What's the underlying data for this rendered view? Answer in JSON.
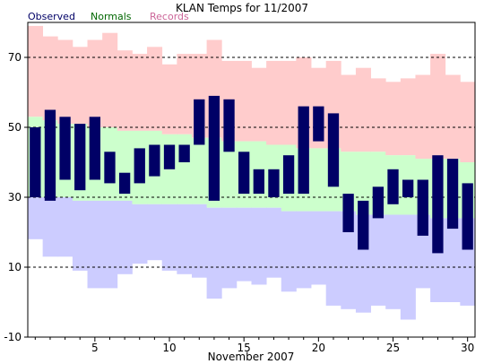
{
  "chart_data": {
    "type": "bar",
    "title": "KLAN Temps for 11/2007",
    "xlabel": "November 2007",
    "ylabel": "",
    "xlim": [
      0.5,
      30.5
    ],
    "ylim": [
      -10,
      80
    ],
    "x_ticks": [
      5,
      10,
      15,
      20,
      25,
      30
    ],
    "y_ticks": [
      -10,
      10,
      30,
      50,
      70
    ],
    "grid_dashed_at": [
      10,
      30,
      50,
      70
    ],
    "legend": {
      "placement": "top-left",
      "entries": [
        "Observed",
        "Normals",
        "Records"
      ]
    },
    "colors": {
      "observed": "#000066",
      "normals": "#ccffcc",
      "records_high": "#ffcccc",
      "records_low": "#ccccff",
      "legend_observed": "#000066",
      "legend_normals": "#006600",
      "legend_records": "#cc6699"
    },
    "days": [
      1,
      2,
      3,
      4,
      5,
      6,
      7,
      8,
      9,
      10,
      11,
      12,
      13,
      14,
      15,
      16,
      17,
      18,
      19,
      20,
      21,
      22,
      23,
      24,
      25,
      26,
      27,
      28,
      29,
      30
    ],
    "observed_high": [
      50,
      55,
      53,
      51,
      53,
      43,
      37,
      44,
      45,
      45,
      45,
      58,
      59,
      58,
      43,
      38,
      38,
      42,
      56,
      56,
      54,
      31,
      29,
      33,
      38,
      35,
      35,
      42,
      41,
      34
    ],
    "observed_low": [
      30,
      29,
      35,
      32,
      35,
      34,
      31,
      34,
      36,
      38,
      40,
      45,
      29,
      43,
      31,
      31,
      30,
      31,
      31,
      46,
      33,
      20,
      15,
      24,
      28,
      30,
      19,
      14,
      21,
      15
    ],
    "normal_high": [
      53,
      52,
      51,
      51,
      50,
      50,
      49,
      49,
      49,
      48,
      48,
      47,
      47,
      46,
      46,
      46,
      45,
      45,
      44,
      44,
      44,
      43,
      43,
      43,
      42,
      42,
      41,
      41,
      41,
      40
    ],
    "normal_low": [
      30,
      30,
      30,
      29,
      29,
      29,
      29,
      28,
      28,
      28,
      28,
      28,
      27,
      27,
      27,
      27,
      27,
      26,
      26,
      26,
      26,
      26,
      25,
      25,
      25,
      25,
      25,
      24,
      24,
      24
    ],
    "record_high": [
      79,
      76,
      75,
      73,
      75,
      77,
      72,
      71,
      73,
      68,
      71,
      71,
      75,
      69,
      69,
      67,
      69,
      69,
      70,
      67,
      69,
      65,
      67,
      64,
      63,
      64,
      65,
      71,
      65,
      63
    ],
    "record_low": [
      18,
      13,
      13,
      9,
      4,
      4,
      8,
      11,
      12,
      9,
      8,
      7,
      1,
      4,
      6,
      5,
      7,
      3,
      4,
      5,
      -1,
      -2,
      -3,
      -1,
      -2,
      -5,
      4,
      0,
      0,
      -1
    ]
  }
}
